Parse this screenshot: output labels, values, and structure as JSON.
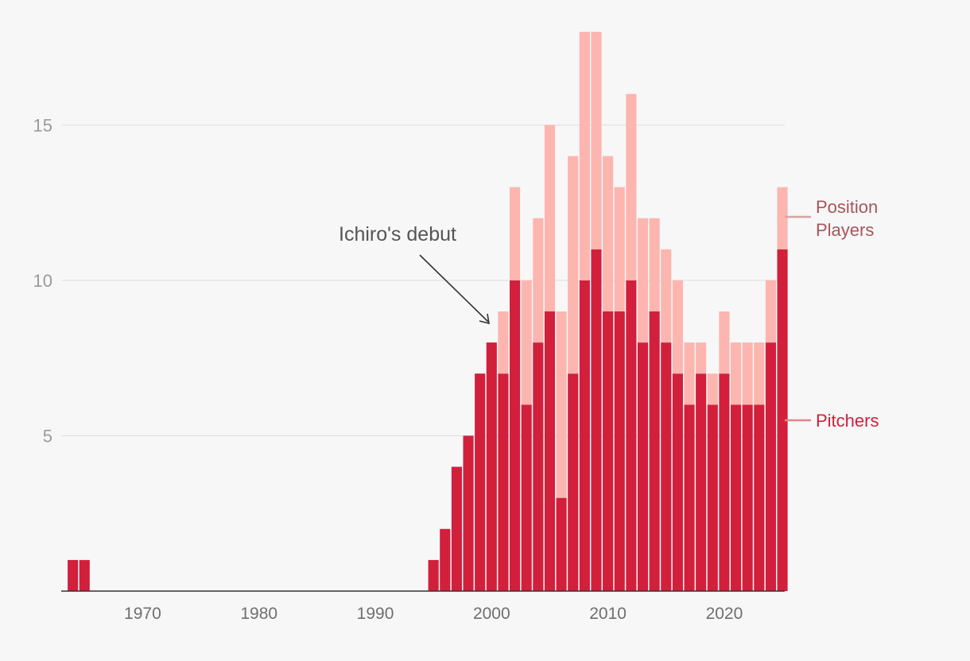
{
  "chart_data": {
    "type": "bar",
    "stacked": true,
    "x": [
      1964,
      1965,
      1995,
      1996,
      1997,
      1998,
      1999,
      2000,
      2001,
      2002,
      2003,
      2004,
      2005,
      2006,
      2007,
      2008,
      2009,
      2010,
      2011,
      2012,
      2013,
      2014,
      2015,
      2016,
      2017,
      2018,
      2019,
      2020,
      2021,
      2022,
      2023,
      2024,
      2025
    ],
    "series": [
      {
        "name": "Pitchers",
        "color": "#d21f3c",
        "values": [
          1,
          1,
          1,
          2,
          4,
          5,
          7,
          8,
          7,
          10,
          6,
          8,
          9,
          3,
          7,
          10,
          11,
          9,
          9,
          10,
          8,
          9,
          8,
          7,
          6,
          7,
          6,
          7,
          6,
          6,
          6,
          8,
          11
        ]
      },
      {
        "name": "Position Players",
        "color": "#fdb5b0",
        "values": [
          0,
          0,
          0,
          0,
          0,
          0,
          0,
          0,
          2,
          3,
          4,
          4,
          6,
          6,
          7,
          8,
          7,
          5,
          4,
          6,
          4,
          3,
          3,
          3,
          2,
          1,
          1,
          2,
          2,
          2,
          2,
          2,
          2
        ]
      }
    ],
    "xlim": [
      1963.5,
      2025.7
    ],
    "ylim": [
      0,
      18
    ],
    "xticks": [
      1970,
      1980,
      1990,
      2000,
      2010,
      2020
    ],
    "yticks": [
      5,
      10,
      15
    ],
    "grid": true,
    "legend": {
      "placement": "right",
      "pitchers_label": "Pitchers",
      "position_label_lines": [
        "Position",
        "Players"
      ],
      "pitchers_color": "#d21f3c",
      "position_color": "#a8555a",
      "position_line_color": "#d6a4a4",
      "pitchers_line_color": "#e4848b"
    },
    "annotation": {
      "text": "Ichiro's debut",
      "year": 2001
    }
  }
}
